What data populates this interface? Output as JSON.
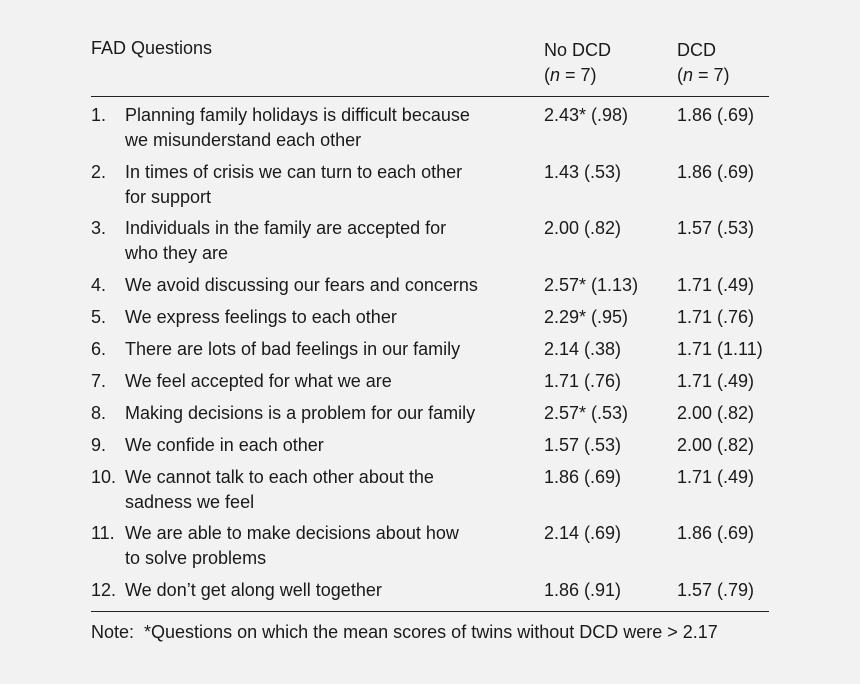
{
  "table": {
    "header": {
      "questions": "FAD Questions",
      "col1_name": "No DCD",
      "col1_n_prefix": "(",
      "col1_n_italic": "n",
      "col1_n_rest": " = 7)",
      "col2_name": "DCD",
      "col2_n_prefix": "(",
      "col2_n_italic": "n",
      "col2_n_rest": " = 7)"
    },
    "rows": [
      {
        "num": "1.",
        "line1": "Planning family holidays is difficult because",
        "line2": "we misunderstand each other",
        "no_dcd": "2.43* (.98)",
        "dcd": "1.86 (.69)"
      },
      {
        "num": "2.",
        "line1": "In times of crisis we can turn to each other",
        "line2": "for support",
        "no_dcd": "1.43 (.53)",
        "dcd": "1.86 (.69)"
      },
      {
        "num": "3.",
        "line1": "Individuals in the family are accepted for",
        "line2": "who they are",
        "no_dcd": "2.00 (.82)",
        "dcd": "1.57 (.53)"
      },
      {
        "num": "4.",
        "line1": "We avoid discussing our fears and concerns",
        "no_dcd": "2.57* (1.13)",
        "dcd": "1.71 (.49)"
      },
      {
        "num": "5.",
        "line1": "We express feelings to each other",
        "no_dcd": "2.29* (.95)",
        "dcd": "1.71 (.76)"
      },
      {
        "num": "6.",
        "line1": "There are lots of bad feelings in our family",
        "no_dcd": "2.14 (.38)",
        "dcd": "1.71 (1.11)"
      },
      {
        "num": "7.",
        "line1": "We feel accepted for what we are",
        "no_dcd": "1.71 (.76)",
        "dcd": "1.71 (.49)"
      },
      {
        "num": "8.",
        "line1": "Making decisions is a problem for our family",
        "no_dcd": "2.57* (.53)",
        "dcd": "2.00 (.82)"
      },
      {
        "num": "9.",
        "line1": "We confide in each other",
        "no_dcd": "1.57 (.53)",
        "dcd": "2.00 (.82)"
      },
      {
        "num": "10.",
        "line1": "We cannot talk to each other about the",
        "line2": "sadness we feel",
        "no_dcd": "1.86 (.69)",
        "dcd": "1.71 (.49)"
      },
      {
        "num": "11.",
        "line1": "We are able to make decisions about how",
        "line2": "to solve problems",
        "no_dcd": "2.14 (.69)",
        "dcd": "1.86 (.69)"
      },
      {
        "num": "12.",
        "line1": "We don’t get along well together",
        "no_dcd": "1.86 (.91)",
        "dcd": "1.57 (.79)"
      }
    ]
  },
  "note": "Note:  *Questions on which the mean scores of twins without DCD were > 2.17"
}
